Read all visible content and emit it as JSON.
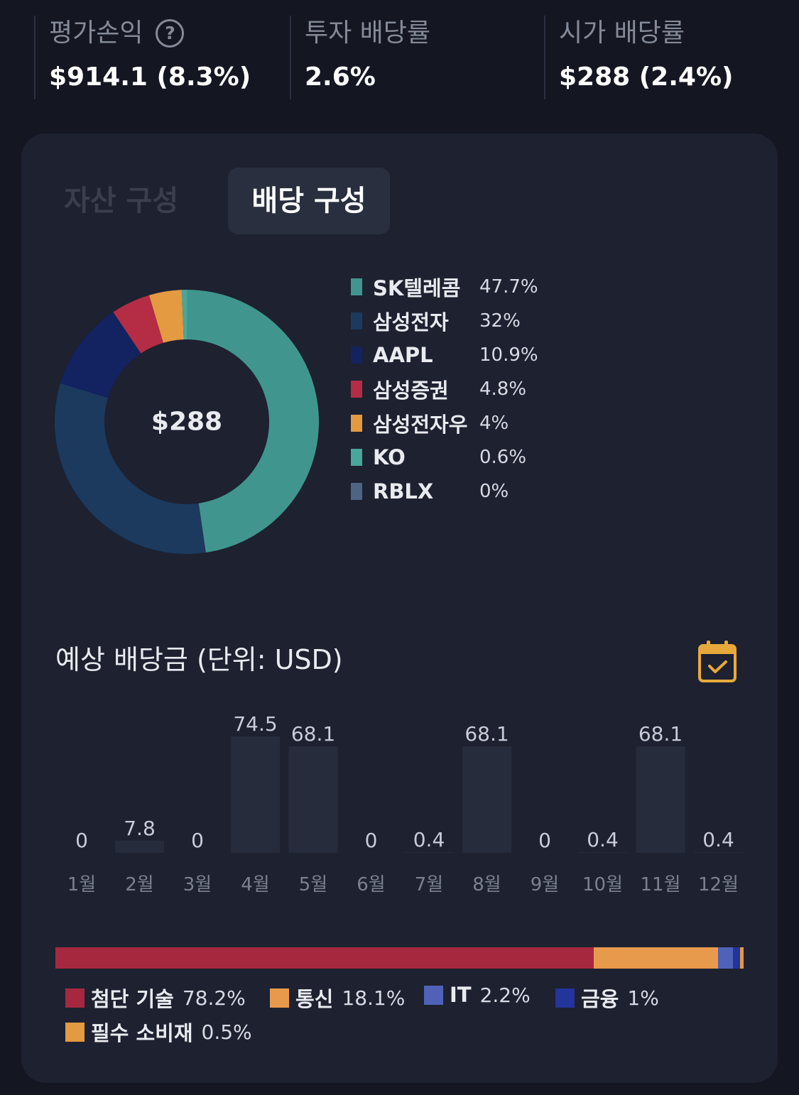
{
  "summary": {
    "eval": {
      "label": "평가손익",
      "value": "$914.1 (8.3%)"
    },
    "yield": {
      "label": "투자 배당률",
      "value": "2.6%"
    },
    "market_yield": {
      "label": "시가 배당률",
      "value": "$288 (2.4%)"
    }
  },
  "tabs": [
    {
      "label": "자산 구성",
      "active": false
    },
    {
      "label": "배당 구성",
      "active": true
    }
  ],
  "donut": {
    "center": "$288",
    "items": [
      {
        "name": "SK텔레콤",
        "pct": "47.7%",
        "value": 47.7,
        "color": "#40968e"
      },
      {
        "name": "삼성전자",
        "pct": "32%",
        "value": 32,
        "color": "#1b3a5e"
      },
      {
        "name": "AAPL",
        "pct": "10.9%",
        "value": 10.9,
        "color": "#132260"
      },
      {
        "name": "삼성증권",
        "pct": "4.8%",
        "value": 4.8,
        "color": "#b52c45"
      },
      {
        "name": "삼성전자우",
        "pct": "4%",
        "value": 4,
        "color": "#e39a40"
      },
      {
        "name": "KO",
        "pct": "0.6%",
        "value": 0.6,
        "color": "#48a69a"
      },
      {
        "name": "RBLX",
        "pct": "0%",
        "value": 0,
        "color": "#4d6485"
      }
    ]
  },
  "dividends": {
    "title": "예상 배당금 (단위: USD)",
    "calendar_icon": "calendar-check-icon",
    "accent": "#e8a93c"
  },
  "chart_data": {
    "type": "bar",
    "categories": [
      "1월",
      "2월",
      "3월",
      "4월",
      "5월",
      "6월",
      "7월",
      "8월",
      "9월",
      "10월",
      "11월",
      "12월"
    ],
    "values": [
      0,
      7.8,
      0,
      74.5,
      68.1,
      0,
      0.4,
      68.1,
      0,
      0.4,
      68.1,
      0.4
    ],
    "value_labels": [
      "0",
      "7.8",
      "0",
      "74.5",
      "68.1",
      "0",
      "0.4",
      "68.1",
      "0",
      "0.4",
      "68.1",
      "0.4"
    ],
    "bar_color": "#272c3d"
  },
  "sectors": [
    {
      "name": "첨단 기술",
      "pct": "78.2%",
      "value": 78.2,
      "color": "#a6283f"
    },
    {
      "name": "통신",
      "pct": "18.1%",
      "value": 18.1,
      "color": "#e89a4c"
    },
    {
      "name": "IT",
      "pct": "2.2%",
      "value": 2.2,
      "color": "#4f62b8"
    },
    {
      "name": "금융",
      "pct": "1%",
      "value": 1,
      "color": "#23349a"
    },
    {
      "name": "필수 소비재",
      "pct": "0.5%",
      "value": 0.5,
      "color": "#e39a40"
    }
  ]
}
